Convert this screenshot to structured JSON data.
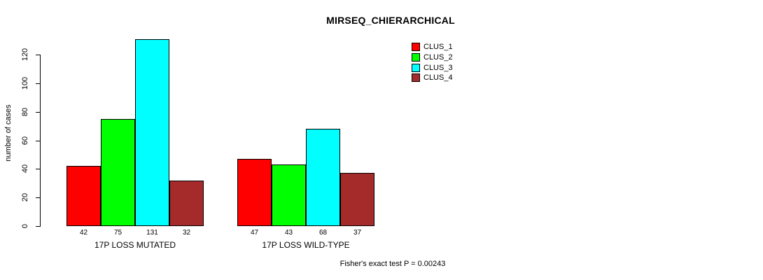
{
  "chart_data": {
    "type": "bar",
    "title": "MIRSEQ_CHIERARCHICAL",
    "ylabel": "number of cases",
    "xlabel": "",
    "categories": [
      "17P LOSS MUTATED",
      "17P LOSS WILD-TYPE"
    ],
    "series": [
      {
        "name": "CLUS_1",
        "color": "#ff0000",
        "values": [
          42,
          47
        ]
      },
      {
        "name": "CLUS_2",
        "color": "#00ff00",
        "values": [
          75,
          43
        ]
      },
      {
        "name": "CLUS_3",
        "color": "#00ffff",
        "values": [
          131,
          68
        ]
      },
      {
        "name": "CLUS_4",
        "color": "#a52a2a",
        "values": [
          32,
          37
        ]
      }
    ],
    "yticks": [
      0,
      20,
      40,
      60,
      80,
      100,
      120
    ],
    "ylim": [
      0,
      131
    ],
    "grid": false,
    "bar_value_labels_shown": true,
    "legend_position": "top-right",
    "annotation": "Fisher's exact test P = 0.00243"
  },
  "legend": {
    "items": [
      {
        "label": "CLUS_1",
        "color": "#ff0000"
      },
      {
        "label": "CLUS_2",
        "color": "#00ff00"
      },
      {
        "label": "CLUS_3",
        "color": "#00ffff"
      },
      {
        "label": "CLUS_4",
        "color": "#a52a2a"
      }
    ]
  },
  "colors": {
    "background": "#ffffff",
    "axis": "#000000",
    "text": "#000000"
  }
}
